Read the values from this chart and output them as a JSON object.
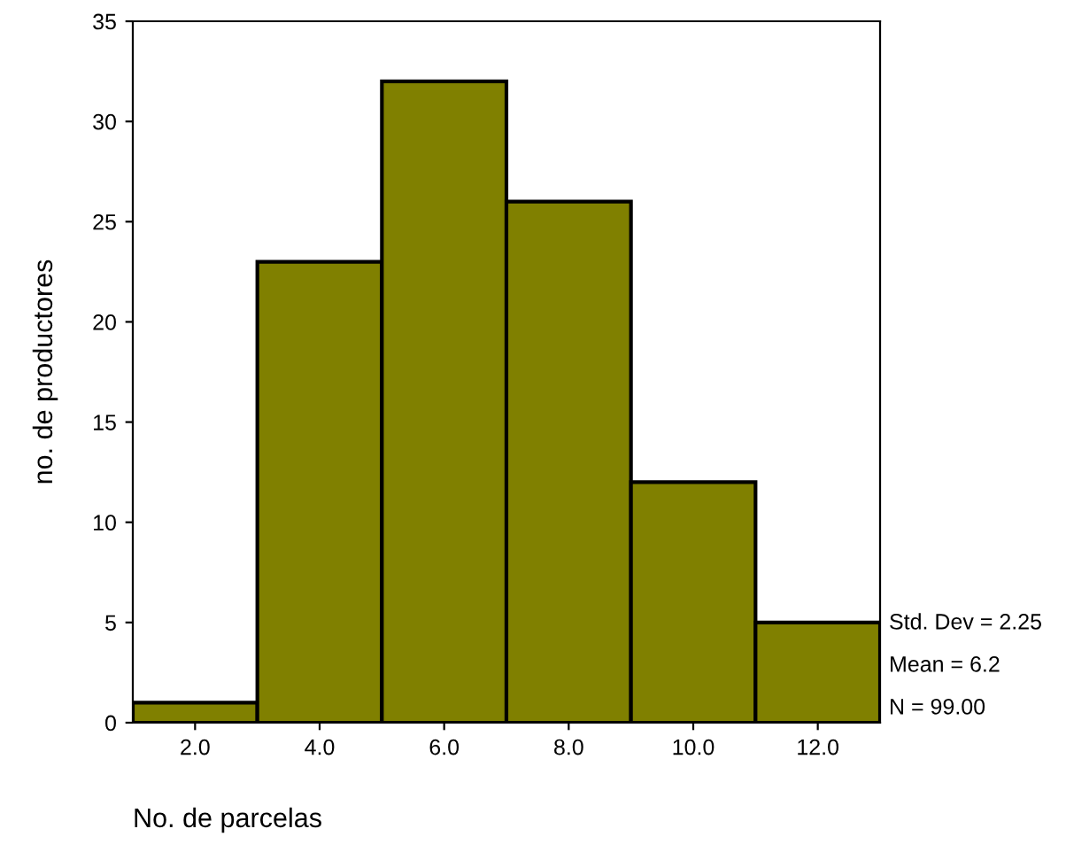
{
  "chart_data": {
    "type": "histogram",
    "xlabel": "No. de parcelas",
    "ylabel": "no. de productores",
    "bins": [
      1,
      3,
      5,
      7,
      9,
      11,
      13
    ],
    "values": [
      1,
      23,
      32,
      26,
      12,
      5
    ],
    "color": "#808000",
    "xlim": [
      1,
      13
    ],
    "xticks": [
      {
        "value": 2,
        "label": "2.0"
      },
      {
        "value": 4,
        "label": "4.0"
      },
      {
        "value": 6,
        "label": "6.0"
      },
      {
        "value": 8,
        "label": "8.0"
      },
      {
        "value": 10,
        "label": "10.0"
      },
      {
        "value": 12,
        "label": "12.0"
      }
    ],
    "ylim": [
      0,
      35
    ],
    "yticks": [
      0,
      5,
      10,
      15,
      20,
      25,
      30,
      35
    ],
    "grid": false,
    "legend": false,
    "annotations": [
      "Std. Dev = 2.25",
      "Mean = 6.2",
      "N = 99.00"
    ]
  }
}
